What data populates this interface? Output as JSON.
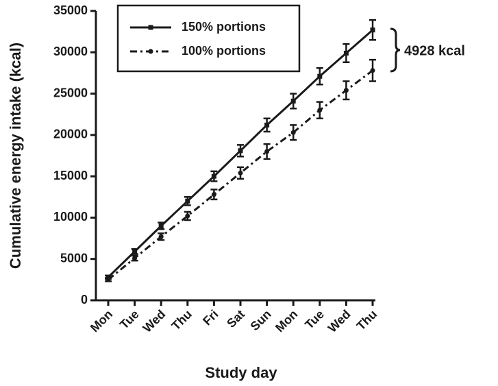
{
  "chart_data": {
    "type": "line",
    "x_label": "Study day",
    "y_label": "Cumulative energy intake (kcal)",
    "annotation": "4928 kcal",
    "categories": [
      "Mon",
      "Tue",
      "Wed",
      "Thu",
      "Fri",
      "Sat",
      "Sun",
      "Mon",
      "Tue",
      "Wed",
      "Thu"
    ],
    "series": [
      {
        "name": "150% portions",
        "color": "#1a1a1a",
        "values": [
          2800,
          5900,
          9000,
          12000,
          15000,
          18100,
          21200,
          24100,
          27100,
          29900,
          32700
        ],
        "errors": [
          200,
          300,
          400,
          500,
          600,
          700,
          800,
          900,
          1000,
          1100,
          1200
        ]
      },
      {
        "name": "100% portions",
        "color": "#1a1a1a",
        "values": [
          2500,
          5100,
          7700,
          10200,
          12800,
          15400,
          18000,
          20300,
          23000,
          25400,
          27800
        ],
        "errors": [
          200,
          300,
          400,
          500,
          600,
          700,
          900,
          900,
          1000,
          1100,
          1300
        ]
      }
    ],
    "ylim": [
      0,
      35000
    ],
    "yticks": [
      0,
      5000,
      10000,
      15000,
      20000,
      25000,
      30000,
      35000
    ],
    "grid": false
  }
}
